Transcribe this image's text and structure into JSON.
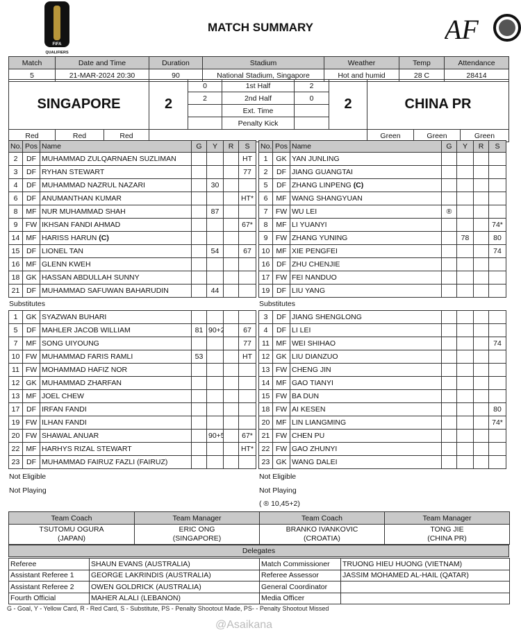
{
  "header": {
    "title": "MATCH SUMMARY",
    "left_logo": "FIFA 26 QUALIFIERS",
    "right_logo": "AFC"
  },
  "info": {
    "headers": [
      "Match",
      "Date and Time",
      "Duration",
      "Stadium",
      "Weather",
      "Temp",
      "Attendance"
    ],
    "values": [
      "5",
      "21-MAR-2024 20:30",
      "90",
      "National Stadium, Singapore",
      "Hot and humid",
      "28 C",
      "28414"
    ]
  },
  "score": {
    "home_team": "SINGAPORE",
    "away_team": "CHINA PR",
    "home_score": "2",
    "away_score": "2",
    "periods": [
      {
        "label": "1st Half",
        "home": "0",
        "away": "2"
      },
      {
        "label": "2nd Half",
        "home": "2",
        "away": "0"
      },
      {
        "label": "Ext. Time",
        "home": "",
        "away": ""
      },
      {
        "label": "Penalty Kick",
        "home": "",
        "away": ""
      }
    ],
    "home_colours": [
      "Red",
      "Red",
      "Red"
    ],
    "away_colours": [
      "Green",
      "Green",
      "Green"
    ]
  },
  "columns": [
    "No.",
    "Pos",
    "Name",
    "G",
    "Y",
    "R",
    "S"
  ],
  "captain_mark": "(C)",
  "substitutes_label": "Substitutes",
  "home": {
    "starters": [
      {
        "no": "2",
        "pos": "DF",
        "name": "MUHAMMAD ZULQARNAEN SUZLIMAN",
        "g": "",
        "y": "",
        "r": "",
        "s": "HT"
      },
      {
        "no": "3",
        "pos": "DF",
        "name": "RYHAN STEWART",
        "g": "",
        "y": "",
        "r": "",
        "s": "77"
      },
      {
        "no": "4",
        "pos": "DF",
        "name": "MUHAMMAD NAZRUL NAZARI",
        "g": "",
        "y": "30",
        "r": "",
        "s": ""
      },
      {
        "no": "6",
        "pos": "DF",
        "name": "ANUMANTHAN KUMAR",
        "g": "",
        "y": "",
        "r": "",
        "s": "HT*"
      },
      {
        "no": "8",
        "pos": "MF",
        "name": "NUR MUHAMMAD SHAH",
        "g": "",
        "y": "87",
        "r": "",
        "s": ""
      },
      {
        "no": "9",
        "pos": "FW",
        "name": "IKHSAN FANDI AHMAD",
        "g": "",
        "y": "",
        "r": "",
        "s": "67*"
      },
      {
        "no": "14",
        "pos": "MF",
        "name": "HARISS HARUN",
        "captain": true,
        "g": "",
        "y": "",
        "r": "",
        "s": ""
      },
      {
        "no": "15",
        "pos": "DF",
        "name": "LIONEL TAN",
        "g": "",
        "y": "54",
        "r": "",
        "s": "67"
      },
      {
        "no": "16",
        "pos": "MF",
        "name": "GLENN KWEH",
        "g": "",
        "y": "",
        "r": "",
        "s": ""
      },
      {
        "no": "18",
        "pos": "GK",
        "name": "HASSAN ABDULLAH SUNNY",
        "g": "",
        "y": "",
        "r": "",
        "s": ""
      },
      {
        "no": "21",
        "pos": "DF",
        "name": "MUHAMMAD SAFUWAN BAHARUDIN",
        "g": "",
        "y": "44",
        "r": "",
        "s": ""
      }
    ],
    "substitutes": [
      {
        "no": "1",
        "pos": "GK",
        "name": "SYAZWAN BUHARI",
        "g": "",
        "y": "",
        "r": "",
        "s": ""
      },
      {
        "no": "5",
        "pos": "DF",
        "name": "MAHLER JACOB WILLIAM",
        "g": "81",
        "y": "90+2",
        "r": "",
        "s": "67"
      },
      {
        "no": "7",
        "pos": "MF",
        "name": "SONG UIYOUNG",
        "g": "",
        "y": "",
        "r": "",
        "s": "77"
      },
      {
        "no": "10",
        "pos": "FW",
        "name": "MUHAMMAD FARIS RAMLI",
        "g": "53",
        "y": "",
        "r": "",
        "s": "HT"
      },
      {
        "no": "11",
        "pos": "FW",
        "name": "MOHAMMAD HAFIZ NOR",
        "g": "",
        "y": "",
        "r": "",
        "s": ""
      },
      {
        "no": "12",
        "pos": "GK",
        "name": "MUHAMMAD ZHARFAN",
        "g": "",
        "y": "",
        "r": "",
        "s": ""
      },
      {
        "no": "13",
        "pos": "MF",
        "name": "JOEL CHEW",
        "g": "",
        "y": "",
        "r": "",
        "s": ""
      },
      {
        "no": "17",
        "pos": "DF",
        "name": "IRFAN FANDI",
        "g": "",
        "y": "",
        "r": "",
        "s": ""
      },
      {
        "no": "19",
        "pos": "FW",
        "name": "ILHAN FANDI",
        "g": "",
        "y": "",
        "r": "",
        "s": ""
      },
      {
        "no": "20",
        "pos": "FW",
        "name": "SHAWAL ANUAR",
        "g": "",
        "y": "90+5",
        "r": "",
        "s": "67*"
      },
      {
        "no": "22",
        "pos": "MF",
        "name": "HARHYS RIZAL STEWART",
        "g": "",
        "y": "",
        "r": "",
        "s": "HT*"
      },
      {
        "no": "23",
        "pos": "DF",
        "name": "MUHAMMAD FAIRUZ FAZLI (FAIRUZ)",
        "g": "",
        "y": "",
        "r": "",
        "s": ""
      }
    ],
    "not_eligible": "Not Eligible",
    "not_playing": "Not Playing"
  },
  "away": {
    "starters": [
      {
        "no": "1",
        "pos": "GK",
        "name": "YAN JUNLING",
        "g": "",
        "y": "",
        "r": "",
        "s": ""
      },
      {
        "no": "2",
        "pos": "DF",
        "name": "JIANG GUANGTAI",
        "g": "",
        "y": "",
        "r": "",
        "s": ""
      },
      {
        "no": "5",
        "pos": "DF",
        "name": "ZHANG LINPENG",
        "captain": true,
        "g": "",
        "y": "",
        "r": "",
        "s": ""
      },
      {
        "no": "6",
        "pos": "MF",
        "name": "WANG SHANGYUAN",
        "g": "",
        "y": "",
        "r": "",
        "s": ""
      },
      {
        "no": "7",
        "pos": "FW",
        "name": "WU LEI",
        "g": "®",
        "y": "",
        "r": "",
        "s": ""
      },
      {
        "no": "8",
        "pos": "MF",
        "name": "LI YUANYI",
        "g": "",
        "y": "",
        "r": "",
        "s": "74*"
      },
      {
        "no": "9",
        "pos": "FW",
        "name": "ZHANG YUNING",
        "g": "",
        "y": "78",
        "r": "",
        "s": "80"
      },
      {
        "no": "10",
        "pos": "MF",
        "name": "XIE PENGFEI",
        "g": "",
        "y": "",
        "r": "",
        "s": "74"
      },
      {
        "no": "16",
        "pos": "DF",
        "name": "ZHU CHENJIE",
        "g": "",
        "y": "",
        "r": "",
        "s": ""
      },
      {
        "no": "17",
        "pos": "FW",
        "name": "FEI NANDUO",
        "g": "",
        "y": "",
        "r": "",
        "s": ""
      },
      {
        "no": "19",
        "pos": "DF",
        "name": "LIU YANG",
        "g": "",
        "y": "",
        "r": "",
        "s": ""
      }
    ],
    "substitutes": [
      {
        "no": "3",
        "pos": "DF",
        "name": "JIANG SHENGLONG",
        "g": "",
        "y": "",
        "r": "",
        "s": ""
      },
      {
        "no": "4",
        "pos": "DF",
        "name": "LI LEI",
        "g": "",
        "y": "",
        "r": "",
        "s": ""
      },
      {
        "no": "11",
        "pos": "MF",
        "name": "WEI SHIHAO",
        "g": "",
        "y": "",
        "r": "",
        "s": "74"
      },
      {
        "no": "12",
        "pos": "GK",
        "name": "LIU DIANZUO",
        "g": "",
        "y": "",
        "r": "",
        "s": ""
      },
      {
        "no": "13",
        "pos": "FW",
        "name": "CHENG JIN",
        "g": "",
        "y": "",
        "r": "",
        "s": ""
      },
      {
        "no": "14",
        "pos": "MF",
        "name": "GAO TIANYI",
        "g": "",
        "y": "",
        "r": "",
        "s": ""
      },
      {
        "no": "15",
        "pos": "FW",
        "name": "BA DUN",
        "g": "",
        "y": "",
        "r": "",
        "s": ""
      },
      {
        "no": "18",
        "pos": "FW",
        "name": "AI KESEN",
        "g": "",
        "y": "",
        "r": "",
        "s": "80"
      },
      {
        "no": "20",
        "pos": "MF",
        "name": "LIN LIANGMING",
        "g": "",
        "y": "",
        "r": "",
        "s": "74*"
      },
      {
        "no": "21",
        "pos": "FW",
        "name": "CHEN PU",
        "g": "",
        "y": "",
        "r": "",
        "s": ""
      },
      {
        "no": "22",
        "pos": "FW",
        "name": "GAO ZHUNYI",
        "g": "",
        "y": "",
        "r": "",
        "s": ""
      },
      {
        "no": "23",
        "pos": "GK",
        "name": "WANG DALEI",
        "g": "",
        "y": "",
        "r": "",
        "s": ""
      }
    ],
    "not_eligible": "Not Eligible",
    "not_playing": "Not Playing",
    "goal_note": "( ® 10,45+2)"
  },
  "staff": {
    "headers": [
      "Team Coach",
      "Team Manager",
      "Team Coach",
      "Team Manager"
    ],
    "people": [
      {
        "name": "TSUTOMU OGURA",
        "country": "(JAPAN)"
      },
      {
        "name": "ERIC ONG",
        "country": "(SINGAPORE)"
      },
      {
        "name": "BRANKO IVANKOVIC",
        "country": "(CROATIA)"
      },
      {
        "name": "TONG JIE",
        "country": "(CHINA PR)"
      }
    ]
  },
  "delegates": {
    "title": "Delegates",
    "rows": [
      [
        "Referee",
        "SHAUN EVANS (AUSTRALIA)",
        "Match Commissioner",
        "TRUONG HIEU HUONG (VIETNAM)"
      ],
      [
        "Assistant Referee 1",
        "GEORGE LAKRINDIS (AUSTRALIA)",
        "Referee Assessor",
        "JASSIM MOHAMED AL-HAIL (QATAR)"
      ],
      [
        "Assistant Referee 2",
        "OWEN GOLDRICK (AUSTRALIA)",
        "General Coordinator",
        ""
      ],
      [
        "Fourth Official",
        "MAHER ALALI (LEBANON)",
        "Media Officer",
        ""
      ]
    ]
  },
  "legend": "G - Goal, Y - Yellow Card, R - Red Card, S - Substitute, PS - Penalty Shootout Made, PS- - Penalty Shootout Missed",
  "watermark": "@Asaikana",
  "colors": {
    "header_bg": "#c9c9c9",
    "border": "#333333"
  }
}
